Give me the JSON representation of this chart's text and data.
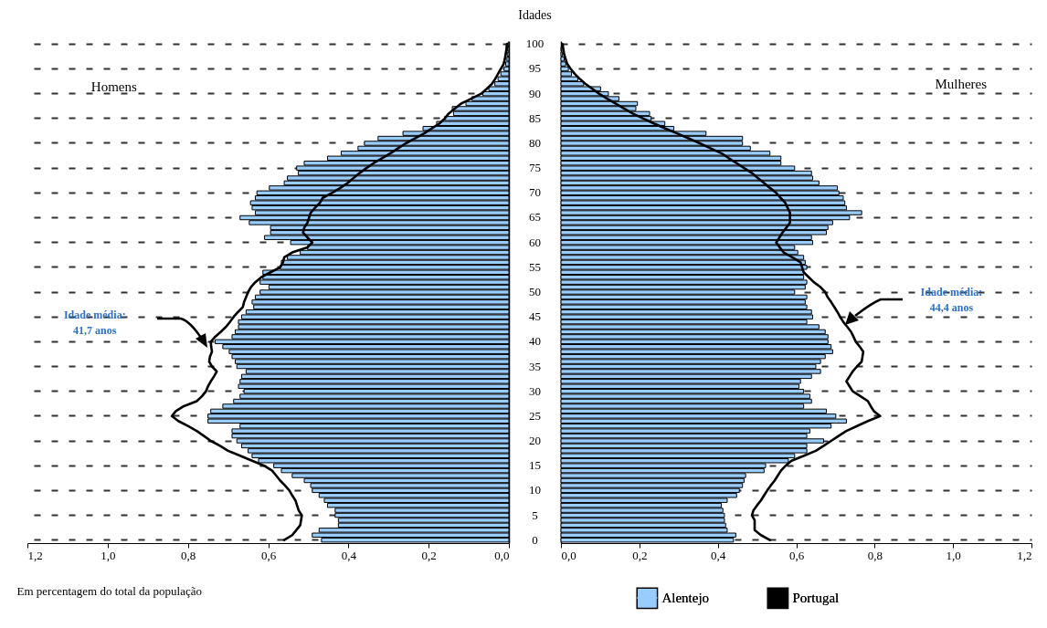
{
  "chart_data": [
    {
      "type": "bar",
      "orientation": "horizontal",
      "ylabel": "Idades",
      "xlabel": "Em percentagem do total da população",
      "categories": [
        "100",
        null,
        null,
        null,
        null,
        "95",
        null,
        null,
        null,
        null,
        "90",
        null,
        null,
        null,
        null,
        "85",
        null,
        null,
        null,
        null,
        "80",
        null,
        null,
        null,
        null,
        "75",
        null,
        null,
        null,
        null,
        "70",
        null,
        null,
        null,
        null,
        "65",
        null,
        null,
        null,
        null,
        "60",
        null,
        null,
        null,
        null,
        "55",
        null,
        null,
        null,
        null,
        "50",
        null,
        null,
        null,
        null,
        "45",
        null,
        null,
        null,
        null,
        "40",
        null,
        null,
        null,
        null,
        "35",
        null,
        null,
        null,
        null,
        "30",
        null,
        null,
        null,
        null,
        "25",
        null,
        null,
        null,
        null,
        "20",
        null,
        null,
        null,
        null,
        "15",
        null,
        null,
        null,
        null,
        "10",
        null,
        null,
        null,
        null,
        "5",
        null,
        null,
        null,
        null,
        "0"
      ],
      "series": [
        {
          "type": "bar",
          "color": "#99ccff",
          "values": [
            0.002,
            0.003,
            0.004,
            0.005,
            0.008,
            0.012,
            0.02,
            0.027,
            0.035,
            0.05,
            0.065,
            0.092,
            0.107,
            0.141,
            0.138,
            0.16,
            0.18,
            0.214,
            0.264,
            0.326,
            0.36,
            0.376,
            0.418,
            0.452,
            0.51,
            0.529,
            0.525,
            0.552,
            0.56,
            0.597,
            0.628,
            0.632,
            0.644,
            0.64,
            0.632,
            0.67,
            0.647,
            0.594,
            0.594,
            0.609,
            0.544,
            0.502,
            0.52,
            0.552,
            0.567,
            0.57,
            0.613,
            0.613,
            0.62,
            0.598,
            0.62,
            0.632,
            0.64,
            0.636,
            0.655,
            0.666,
            0.674,
            0.674,
            0.682,
            0.69,
            0.732,
            0.713,
            0.697,
            0.69,
            0.682,
            0.678,
            0.655,
            0.666,
            0.67,
            0.674,
            0.66,
            0.67,
            0.686,
            0.713,
            0.743,
            0.75,
            0.75,
            0.67,
            0.69,
            0.69,
            0.678,
            0.666,
            0.65,
            0.64,
            0.624,
            0.586,
            0.567,
            0.54,
            0.51,
            0.494,
            0.49,
            0.473,
            0.46,
            0.452,
            0.433,
            0.433,
            0.425,
            0.425,
            0.473,
            0.49,
            0.467
          ]
        },
        {
          "type": "line",
          "color": "#000000",
          "values": [
            0.005,
            0.006,
            0.008,
            0.01,
            0.013,
            0.02,
            0.027,
            0.034,
            0.042,
            0.055,
            0.069,
            0.094,
            0.119,
            0.135,
            0.15,
            0.16,
            0.173,
            0.192,
            0.211,
            0.234,
            0.257,
            0.276,
            0.295,
            0.316,
            0.337,
            0.355,
            0.372,
            0.387,
            0.402,
            0.42,
            0.441,
            0.464,
            0.471,
            0.483,
            0.494,
            0.498,
            0.502,
            0.51,
            0.513,
            0.502,
            0.49,
            0.502,
            0.54,
            0.56,
            0.563,
            0.57,
            0.594,
            0.617,
            0.632,
            0.643,
            0.65,
            0.655,
            0.66,
            0.663,
            0.675,
            0.686,
            0.695,
            0.705,
            0.718,
            0.732,
            0.743,
            0.742,
            0.74,
            0.745,
            0.747,
            0.74,
            0.728,
            0.735,
            0.743,
            0.75,
            0.755,
            0.765,
            0.778,
            0.81,
            0.83,
            0.84,
            0.824,
            0.8,
            0.778,
            0.76,
            0.743,
            0.72,
            0.7,
            0.67,
            0.64,
            0.61,
            0.59,
            0.58,
            0.57,
            0.558,
            0.547,
            0.54,
            0.532,
            0.528,
            0.524,
            0.516,
            0.518,
            0.52,
            0.53,
            0.54,
            0.56
          ]
        }
      ],
      "xlim": [
        1.2,
        0
      ],
      "xticks": [
        {
          "value": 1.2,
          "label": "1,2"
        },
        {
          "value": 1.0,
          "label": "1,0"
        },
        {
          "value": 0.8,
          "label": "0,8"
        },
        {
          "value": 0.6,
          "label": "0,6"
        },
        {
          "value": 0.4,
          "label": "0,4"
        },
        {
          "value": 0.2,
          "label": "0,2"
        },
        {
          "value": 0,
          "label": "0,0"
        }
      ],
      "grid": "y",
      "line_style": "solid",
      "annotations": [
        "Homens",
        "Idade média:\n41,7 anos"
      ]
    },
    {
      "type": "bar",
      "orientation": "horizontal",
      "categories": [
        "100",
        null,
        null,
        null,
        null,
        "95",
        null,
        null,
        null,
        null,
        "90",
        null,
        null,
        null,
        null,
        "85",
        null,
        null,
        null,
        null,
        "80",
        null,
        null,
        null,
        null,
        "75",
        null,
        null,
        null,
        null,
        "70",
        null,
        null,
        null,
        null,
        "65",
        null,
        null,
        null,
        null,
        "60",
        null,
        null,
        null,
        null,
        "55",
        null,
        null,
        null,
        null,
        "50",
        null,
        null,
        null,
        null,
        "45",
        null,
        null,
        null,
        null,
        "40",
        null,
        null,
        null,
        null,
        "35",
        null,
        null,
        null,
        null,
        "30",
        null,
        null,
        null,
        null,
        "25",
        null,
        null,
        null,
        null,
        "20",
        null,
        null,
        null,
        null,
        "15",
        null,
        null,
        null,
        null,
        "10",
        null,
        null,
        null,
        null,
        "5",
        null,
        null,
        null,
        null,
        "0"
      ],
      "series": [
        {
          "type": "bar",
          "name": "Alentejo",
          "color": "#99ccff",
          "values": [
            null,
            0.002,
            0.004,
            0.008,
            0.012,
            0.019,
            0.027,
            0.043,
            0.058,
            0.101,
            0.121,
            0.148,
            0.195,
            0.191,
            0.226,
            0.23,
            0.265,
            0.288,
            0.37,
            0.463,
            0.463,
            0.483,
            0.533,
            0.561,
            0.561,
            0.596,
            0.639,
            0.642,
            0.658,
            0.705,
            0.709,
            0.72,
            0.724,
            0.728,
            0.767,
            0.736,
            0.693,
            0.681,
            0.677,
            0.639,
            0.642,
            0.596,
            0.604,
            0.619,
            0.623,
            0.627,
            0.619,
            0.619,
            0.627,
            0.623,
            0.596,
            0.627,
            0.623,
            0.627,
            0.639,
            0.642,
            0.627,
            0.658,
            0.674,
            0.681,
            0.681,
            0.689,
            0.693,
            0.674,
            0.662,
            0.65,
            0.662,
            0.639,
            0.611,
            0.607,
            0.619,
            0.635,
            0.639,
            0.619,
            0.677,
            0.701,
            0.728,
            0.689,
            0.635,
            0.627,
            0.67,
            0.627,
            0.627,
            0.596,
            0.58,
            0.522,
            0.518,
            0.471,
            0.467,
            0.463,
            0.455,
            0.448,
            0.424,
            0.409,
            0.413,
            0.417,
            0.417,
            0.42,
            0.424,
            0.446,
            0.44
          ]
        },
        {
          "type": "line",
          "name": "Portugal",
          "color": "#000000",
          "values": [
            0.004,
            0.006,
            0.008,
            0.012,
            0.016,
            0.025,
            0.035,
            0.048,
            0.062,
            0.08,
            0.097,
            0.118,
            0.14,
            0.161,
            0.183,
            0.21,
            0.237,
            0.266,
            0.296,
            0.325,
            0.354,
            0.381,
            0.409,
            0.428,
            0.448,
            0.467,
            0.487,
            0.502,
            0.518,
            0.533,
            0.549,
            0.56,
            0.572,
            0.578,
            0.584,
            0.584,
            0.584,
            0.575,
            0.565,
            0.557,
            0.549,
            0.558,
            0.568,
            0.59,
            0.611,
            0.615,
            0.619,
            0.632,
            0.645,
            0.662,
            0.674,
            0.68,
            0.689,
            0.697,
            0.705,
            0.712,
            0.72,
            0.73,
            0.74,
            0.746,
            0.752,
            0.762,
            0.771,
            0.769,
            0.767,
            0.755,
            0.744,
            0.736,
            0.728,
            0.736,
            0.744,
            0.764,
            0.783,
            0.79,
            0.798,
            0.814,
            0.783,
            0.755,
            0.728,
            0.708,
            0.689,
            0.67,
            0.65,
            0.62,
            0.588,
            0.573,
            0.561,
            0.553,
            0.545,
            0.535,
            0.526,
            0.518,
            0.51,
            0.5,
            0.491,
            0.487,
            0.494,
            0.494,
            0.494,
            0.51,
            0.533
          ]
        }
      ],
      "xlim": [
        0,
        1.2
      ],
      "xticks": [
        {
          "value": 0,
          "label": "0,0"
        },
        {
          "value": 0.2,
          "label": "0,2"
        },
        {
          "value": 0.4,
          "label": "0,4"
        },
        {
          "value": 0.6,
          "label": "0,6"
        },
        {
          "value": 0.8,
          "label": "0,8"
        },
        {
          "value": 1.0,
          "label": "1,0"
        },
        {
          "value": 1.2,
          "label": "1,2"
        }
      ],
      "grid": "y",
      "legend": "bottom",
      "tick_labels": "x",
      "line_style": "solid",
      "annotations": [
        "Mulheres",
        "Idade média:\n44,4 anos"
      ]
    }
  ]
}
